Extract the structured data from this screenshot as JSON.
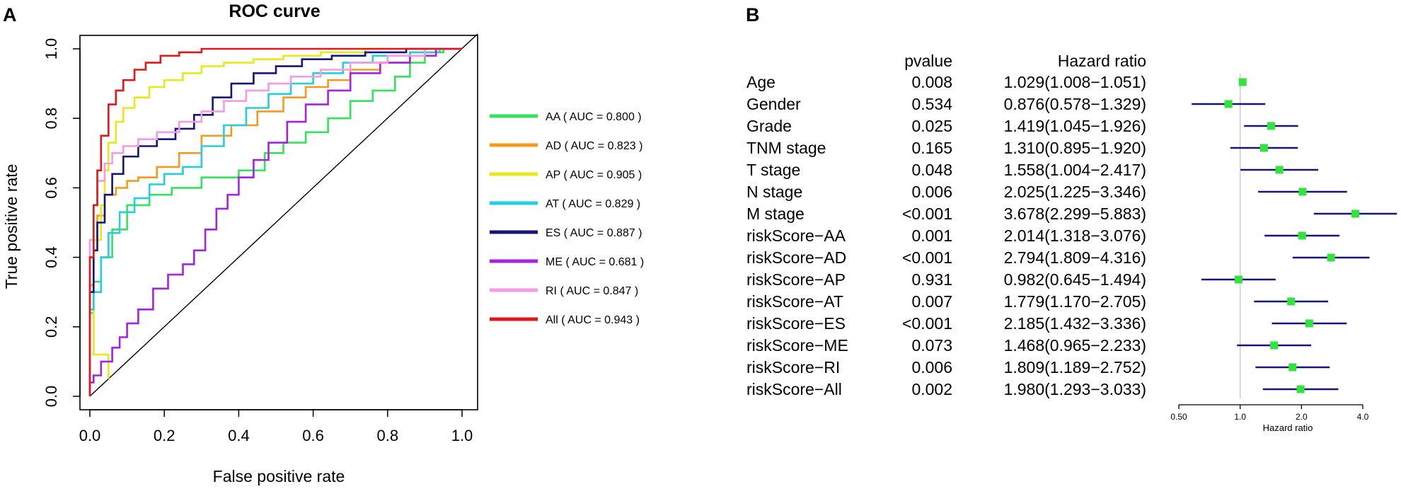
{
  "colors": {
    "AA": "#33e35c",
    "AD": "#f59b1c",
    "AP": "#e7ea18",
    "AT": "#22cfe0",
    "ES": "#15157a",
    "ME": "#a621e3",
    "RI": "#f79ae4",
    "All": "#e3161a",
    "forest_line": "#15157a",
    "forest_box": "#33e33d",
    "ref_line": "#c8c8c8"
  },
  "panels": {
    "a_label": "A",
    "b_label": "B"
  },
  "chart_data": [
    {
      "type": "line",
      "title": "ROC curve",
      "xlabel": "False positive rate",
      "ylabel": "True positive rate",
      "xlim": [
        0,
        1
      ],
      "ylim": [
        0,
        1
      ],
      "xticks": [
        "0.0",
        "0.2",
        "0.4",
        "0.6",
        "0.8",
        "1.0"
      ],
      "yticks": [
        "0.0",
        "0.2",
        "0.4",
        "0.6",
        "0.8",
        "1.0"
      ],
      "legend_position": "right",
      "series": [
        {
          "name": "AA",
          "legend": "AA ( AUC =  0.800 )",
          "auc": 0.8,
          "color_key": "AA",
          "points": [
            [
              0,
              0
            ],
            [
              0,
              0.1
            ],
            [
              0.01,
              0.24
            ],
            [
              0.03,
              0.33
            ],
            [
              0.06,
              0.4
            ],
            [
              0.1,
              0.48
            ],
            [
              0.16,
              0.55
            ],
            [
              0.22,
              0.58
            ],
            [
              0.3,
              0.6
            ],
            [
              0.4,
              0.63
            ],
            [
              0.47,
              0.65
            ],
            [
              0.52,
              0.7
            ],
            [
              0.58,
              0.73
            ],
            [
              0.64,
              0.76
            ],
            [
              0.7,
              0.8
            ],
            [
              0.76,
              0.85
            ],
            [
              0.82,
              0.88
            ],
            [
              0.86,
              0.92
            ],
            [
              0.9,
              0.96
            ],
            [
              0.95,
              0.99
            ],
            [
              1,
              1
            ]
          ]
        },
        {
          "name": "AD",
          "legend": "AD ( AUC =  0.823 )",
          "auc": 0.823,
          "color_key": "AD",
          "points": [
            [
              0,
              0
            ],
            [
              0,
              0.15
            ],
            [
              0.01,
              0.32
            ],
            [
              0.02,
              0.45
            ],
            [
              0.04,
              0.52
            ],
            [
              0.07,
              0.58
            ],
            [
              0.1,
              0.6
            ],
            [
              0.13,
              0.62
            ],
            [
              0.18,
              0.63
            ],
            [
              0.24,
              0.66
            ],
            [
              0.3,
              0.7
            ],
            [
              0.38,
              0.75
            ],
            [
              0.45,
              0.78
            ],
            [
              0.52,
              0.82
            ],
            [
              0.58,
              0.86
            ],
            [
              0.64,
              0.89
            ],
            [
              0.7,
              0.91
            ],
            [
              0.78,
              0.94
            ],
            [
              0.86,
              0.96
            ],
            [
              0.93,
              0.99
            ],
            [
              1,
              1
            ]
          ]
        },
        {
          "name": "AP",
          "legend": "AP ( AUC =  0.905 )",
          "auc": 0.905,
          "color_key": "AP",
          "points": [
            [
              0.05,
              0.05
            ],
            [
              0.01,
              0.12
            ],
            [
              0.01,
              0.3
            ],
            [
              0.03,
              0.45
            ],
            [
              0.04,
              0.55
            ],
            [
              0.05,
              0.65
            ],
            [
              0.07,
              0.73
            ],
            [
              0.09,
              0.79
            ],
            [
              0.12,
              0.83
            ],
            [
              0.16,
              0.86
            ],
            [
              0.2,
              0.89
            ],
            [
              0.25,
              0.91
            ],
            [
              0.3,
              0.93
            ],
            [
              0.36,
              0.95
            ],
            [
              0.44,
              0.96
            ],
            [
              0.52,
              0.97
            ],
            [
              0.62,
              0.98
            ],
            [
              0.74,
              0.99
            ],
            [
              0.86,
              1.0
            ],
            [
              1,
              1
            ]
          ]
        },
        {
          "name": "AT",
          "legend": "AT ( AUC =  0.829 )",
          "auc": 0.829,
          "color_key": "AT",
          "points": [
            [
              0,
              0
            ],
            [
              0.01,
              0.25
            ],
            [
              0.03,
              0.3
            ],
            [
              0.05,
              0.4
            ],
            [
              0.08,
              0.47
            ],
            [
              0.12,
              0.53
            ],
            [
              0.16,
              0.57
            ],
            [
              0.2,
              0.61
            ],
            [
              0.25,
              0.64
            ],
            [
              0.3,
              0.66
            ],
            [
              0.36,
              0.72
            ],
            [
              0.42,
              0.78
            ],
            [
              0.48,
              0.83
            ],
            [
              0.54,
              0.87
            ],
            [
              0.6,
              0.9
            ],
            [
              0.68,
              0.93
            ],
            [
              0.76,
              0.96
            ],
            [
              0.86,
              0.98
            ],
            [
              0.94,
              0.99
            ],
            [
              1,
              1
            ]
          ]
        },
        {
          "name": "ES",
          "legend": "ES ( AUC =  0.887 )",
          "auc": 0.887,
          "color_key": "ES",
          "points": [
            [
              0,
              0
            ],
            [
              0,
              0.1
            ],
            [
              0.01,
              0.3
            ],
            [
              0.02,
              0.42
            ],
            [
              0.04,
              0.5
            ],
            [
              0.06,
              0.58
            ],
            [
              0.09,
              0.64
            ],
            [
              0.13,
              0.69
            ],
            [
              0.18,
              0.72
            ],
            [
              0.23,
              0.74
            ],
            [
              0.28,
              0.77
            ],
            [
              0.33,
              0.81
            ],
            [
              0.38,
              0.86
            ],
            [
              0.44,
              0.9
            ],
            [
              0.5,
              0.93
            ],
            [
              0.57,
              0.95
            ],
            [
              0.65,
              0.97
            ],
            [
              0.74,
              0.98
            ],
            [
              0.85,
              0.99
            ],
            [
              1,
              1
            ]
          ]
        },
        {
          "name": "ME",
          "legend": "ME ( AUC =  0.681 )",
          "auc": 0.681,
          "color_key": "ME",
          "points": [
            [
              0,
              0
            ],
            [
              0.01,
              0.04
            ],
            [
              0.03,
              0.06
            ],
            [
              0.06,
              0.1
            ],
            [
              0.08,
              0.14
            ],
            [
              0.1,
              0.17
            ],
            [
              0.13,
              0.21
            ],
            [
              0.17,
              0.25
            ],
            [
              0.21,
              0.31
            ],
            [
              0.25,
              0.35
            ],
            [
              0.28,
              0.38
            ],
            [
              0.31,
              0.42
            ],
            [
              0.34,
              0.48
            ],
            [
              0.37,
              0.54
            ],
            [
              0.4,
              0.58
            ],
            [
              0.44,
              0.63
            ],
            [
              0.48,
              0.68
            ],
            [
              0.53,
              0.73
            ],
            [
              0.58,
              0.79
            ],
            [
              0.64,
              0.84
            ],
            [
              0.7,
              0.88
            ],
            [
              0.78,
              0.93
            ],
            [
              0.86,
              0.96
            ],
            [
              0.93,
              0.98
            ],
            [
              1,
              1
            ]
          ]
        },
        {
          "name": "RI",
          "legend": "RI ( AUC =  0.847 )",
          "auc": 0.847,
          "color_key": "RI",
          "points": [
            [
              0,
              0
            ],
            [
              0,
              0.25
            ],
            [
              0.01,
              0.45
            ],
            [
              0.02,
              0.55
            ],
            [
              0.04,
              0.62
            ],
            [
              0.06,
              0.67
            ],
            [
              0.09,
              0.7
            ],
            [
              0.13,
              0.72
            ],
            [
              0.18,
              0.74
            ],
            [
              0.24,
              0.76
            ],
            [
              0.3,
              0.79
            ],
            [
              0.36,
              0.82
            ],
            [
              0.42,
              0.85
            ],
            [
              0.48,
              0.88
            ],
            [
              0.54,
              0.9
            ],
            [
              0.62,
              0.92
            ],
            [
              0.7,
              0.94
            ],
            [
              0.8,
              0.96
            ],
            [
              0.9,
              0.98
            ],
            [
              1,
              1
            ]
          ]
        },
        {
          "name": "All",
          "legend": "All ( AUC =  0.943 )",
          "auc": 0.943,
          "color_key": "All",
          "points": [
            [
              0,
              0
            ],
            [
              0,
              0.15
            ],
            [
              0.01,
              0.4
            ],
            [
              0.02,
              0.55
            ],
            [
              0.03,
              0.65
            ],
            [
              0.05,
              0.75
            ],
            [
              0.07,
              0.84
            ],
            [
              0.09,
              0.88
            ],
            [
              0.12,
              0.91
            ],
            [
              0.15,
              0.94
            ],
            [
              0.19,
              0.96
            ],
            [
              0.24,
              0.98
            ],
            [
              0.3,
              0.99
            ],
            [
              0.4,
              1.0
            ],
            [
              1,
              1
            ]
          ]
        }
      ]
    },
    {
      "type": "forest",
      "xlabel": "Hazard ratio",
      "xscale": "log2",
      "xlim": [
        0.5,
        4.0
      ],
      "reference": 1.0,
      "xticks": [
        {
          "value": 0.5,
          "label": "0.50"
        },
        {
          "value": 1.0,
          "label": "1.0"
        },
        {
          "value": 2.0,
          "label": "2.0"
        },
        {
          "value": 4.0,
          "label": "4.0"
        }
      ],
      "columns": {
        "pvalue": "pvalue",
        "hr": "Hazard ratio"
      },
      "rows": [
        {
          "name": "Age",
          "pvalue": "0.008",
          "hr_text": "1.029(1.008−1.051)",
          "hr": 1.029,
          "lo": 1.008,
          "hi": 1.051
        },
        {
          "name": "Gender",
          "pvalue": "0.534",
          "hr_text": "0.876(0.578−1.329)",
          "hr": 0.876,
          "lo": 0.578,
          "hi": 1.329
        },
        {
          "name": "Grade",
          "pvalue": "0.025",
          "hr_text": "1.419(1.045−1.926)",
          "hr": 1.419,
          "lo": 1.045,
          "hi": 1.926
        },
        {
          "name": "TNM stage",
          "pvalue": "0.165",
          "hr_text": "1.310(0.895−1.920)",
          "hr": 1.31,
          "lo": 0.895,
          "hi": 1.92
        },
        {
          "name": "T stage",
          "pvalue": "0.048",
          "hr_text": "1.558(1.004−2.417)",
          "hr": 1.558,
          "lo": 1.004,
          "hi": 2.417
        },
        {
          "name": "N stage",
          "pvalue": "0.006",
          "hr_text": "2.025(1.225−3.346)",
          "hr": 2.025,
          "lo": 1.225,
          "hi": 3.346
        },
        {
          "name": "M stage",
          "pvalue": "<0.001",
          "hr_text": "3.678(2.299−5.883)",
          "hr": 3.678,
          "lo": 2.299,
          "hi": 5.883
        },
        {
          "name": "riskScore−AA",
          "pvalue": "0.001",
          "hr_text": "2.014(1.318−3.076)",
          "hr": 2.014,
          "lo": 1.318,
          "hi": 3.076
        },
        {
          "name": "riskScore−AD",
          "pvalue": "<0.001",
          "hr_text": "2.794(1.809−4.316)",
          "hr": 2.794,
          "lo": 1.809,
          "hi": 4.316
        },
        {
          "name": "riskScore−AP",
          "pvalue": "0.931",
          "hr_text": "0.982(0.645−1.494)",
          "hr": 0.982,
          "lo": 0.645,
          "hi": 1.494
        },
        {
          "name": "riskScore−AT",
          "pvalue": "0.007",
          "hr_text": "1.779(1.170−2.705)",
          "hr": 1.779,
          "lo": 1.17,
          "hi": 2.705
        },
        {
          "name": "riskScore−ES",
          "pvalue": "<0.001",
          "hr_text": "2.185(1.432−3.336)",
          "hr": 2.185,
          "lo": 1.432,
          "hi": 3.336
        },
        {
          "name": "riskScore−ME",
          "pvalue": "0.073",
          "hr_text": "1.468(0.965−2.233)",
          "hr": 1.468,
          "lo": 0.965,
          "hi": 2.233
        },
        {
          "name": "riskScore−RI",
          "pvalue": "0.006",
          "hr_text": "1.809(1.189−2.752)",
          "hr": 1.809,
          "lo": 1.189,
          "hi": 2.752
        },
        {
          "name": "riskScore−All",
          "pvalue": "0.002",
          "hr_text": "1.980(1.293−3.033)",
          "hr": 1.98,
          "lo": 1.293,
          "hi": 3.033
        }
      ]
    }
  ]
}
